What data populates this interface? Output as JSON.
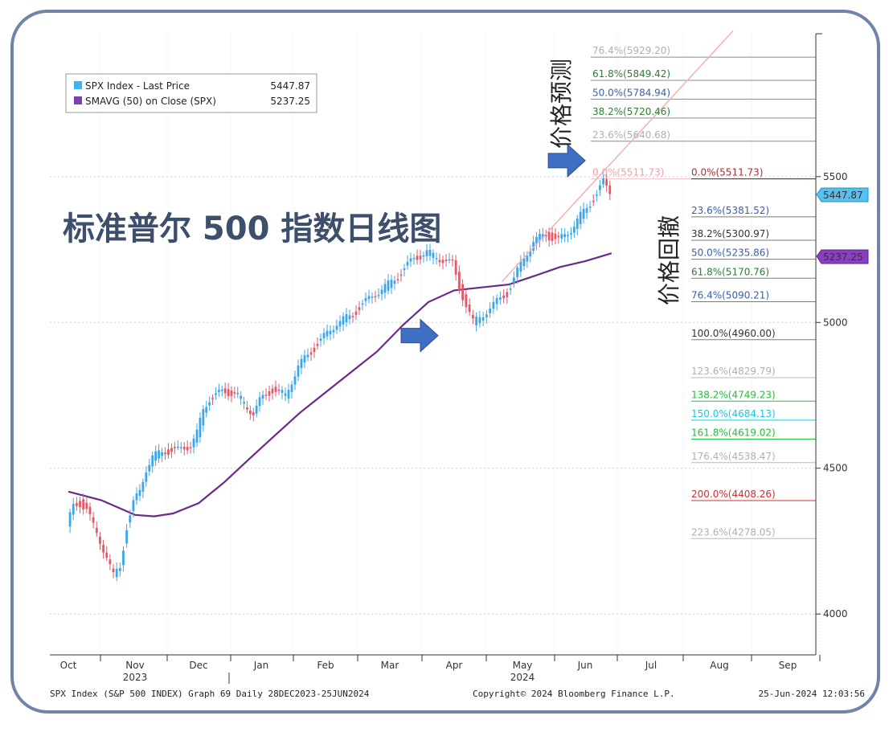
{
  "chart_data": {
    "type": "line",
    "title": "标准普尔 500 指数日线图",
    "annotation_forecast": "价格预测",
    "annotation_retracement": "价格回撤",
    "legend": [
      {
        "name": "SPX Index - Last Price",
        "value": "5447.87",
        "color": "#3db4f2"
      },
      {
        "name": "SMAVG (50)  on Close (SPX)",
        "value": "5237.25",
        "color": "#7e3fb0"
      }
    ],
    "last_price_badge": "5447.87",
    "sma_badge": "5237.25",
    "y_ticks": [
      {
        "value": 4000,
        "label": "4000"
      },
      {
        "value": 4500,
        "label": "4500"
      },
      {
        "value": 5000,
        "label": "5000"
      },
      {
        "value": 5500,
        "label": "5500"
      }
    ],
    "y_range": [
      3860,
      5990
    ],
    "x_months": [
      {
        "label": "Oct",
        "x": 0
      },
      {
        "label": "Nov",
        "x": 1
      },
      {
        "label": "Dec",
        "x": 2
      },
      {
        "label": "Jan",
        "x": 3
      },
      {
        "label": "Feb",
        "x": 4
      },
      {
        "label": "Mar",
        "x": 5
      },
      {
        "label": "Apr",
        "x": 6
      },
      {
        "label": "May",
        "x": 7
      },
      {
        "label": "Jun",
        "x": 8
      },
      {
        "label": "Jul",
        "x": 9
      },
      {
        "label": "Aug",
        "x": 10
      },
      {
        "label": "Sep",
        "x": 11
      }
    ],
    "x_years": [
      {
        "label": "2023",
        "x": 1
      },
      {
        "label": "2024",
        "x": 7
      }
    ],
    "price_series": [
      {
        "x": 0.0,
        "y": 4300
      },
      {
        "x": 0.1,
        "y": 4370
      },
      {
        "x": 0.2,
        "y": 4380
      },
      {
        "x": 0.3,
        "y": 4360
      },
      {
        "x": 0.4,
        "y": 4300
      },
      {
        "x": 0.5,
        "y": 4250
      },
      {
        "x": 0.6,
        "y": 4200
      },
      {
        "x": 0.7,
        "y": 4130
      },
      {
        "x": 0.8,
        "y": 4160
      },
      {
        "x": 0.9,
        "y": 4300
      },
      {
        "x": 1.0,
        "y": 4380
      },
      {
        "x": 1.1,
        "y": 4420
      },
      {
        "x": 1.2,
        "y": 4500
      },
      {
        "x": 1.3,
        "y": 4540
      },
      {
        "x": 1.5,
        "y": 4560
      },
      {
        "x": 1.7,
        "y": 4560
      },
      {
        "x": 1.9,
        "y": 4580
      },
      {
        "x": 2.0,
        "y": 4620
      },
      {
        "x": 2.1,
        "y": 4700
      },
      {
        "x": 2.2,
        "y": 4740
      },
      {
        "x": 2.4,
        "y": 4760
      },
      {
        "x": 2.6,
        "y": 4760
      },
      {
        "x": 2.8,
        "y": 4710
      },
      {
        "x": 2.9,
        "y": 4690
      },
      {
        "x": 3.0,
        "y": 4730
      },
      {
        "x": 3.2,
        "y": 4770
      },
      {
        "x": 3.4,
        "y": 4750
      },
      {
        "x": 3.6,
        "y": 4850
      },
      {
        "x": 3.8,
        "y": 4900
      },
      {
        "x": 4.0,
        "y": 4950
      },
      {
        "x": 4.2,
        "y": 5000
      },
      {
        "x": 4.4,
        "y": 5020
      },
      {
        "x": 4.6,
        "y": 5060
      },
      {
        "x": 4.8,
        "y": 5100
      },
      {
        "x": 5.0,
        "y": 5130
      },
      {
        "x": 5.2,
        "y": 5170
      },
      {
        "x": 5.4,
        "y": 5220
      },
      {
        "x": 5.6,
        "y": 5240
      },
      {
        "x": 5.8,
        "y": 5220
      },
      {
        "x": 6.0,
        "y": 5200
      },
      {
        "x": 6.1,
        "y": 5120
      },
      {
        "x": 6.2,
        "y": 5060
      },
      {
        "x": 6.3,
        "y": 5000
      },
      {
        "x": 6.4,
        "y": 5020
      },
      {
        "x": 6.6,
        "y": 5060
      },
      {
        "x": 6.8,
        "y": 5100
      },
      {
        "x": 7.0,
        "y": 5200
      },
      {
        "x": 7.2,
        "y": 5280
      },
      {
        "x": 7.4,
        "y": 5300
      },
      {
        "x": 7.6,
        "y": 5280
      },
      {
        "x": 7.8,
        "y": 5320
      },
      {
        "x": 8.0,
        "y": 5380
      },
      {
        "x": 8.2,
        "y": 5440
      },
      {
        "x": 8.3,
        "y": 5480
      },
      {
        "x": 8.4,
        "y": 5447.87
      }
    ],
    "sma_series": [
      {
        "x": 0.0,
        "y": 4420
      },
      {
        "x": 0.5,
        "y": 4390
      },
      {
        "x": 1.0,
        "y": 4340
      },
      {
        "x": 1.3,
        "y": 4335
      },
      {
        "x": 1.6,
        "y": 4345
      },
      {
        "x": 2.0,
        "y": 4380
      },
      {
        "x": 2.4,
        "y": 4450
      },
      {
        "x": 2.8,
        "y": 4530
      },
      {
        "x": 3.2,
        "y": 4610
      },
      {
        "x": 3.6,
        "y": 4690
      },
      {
        "x": 4.0,
        "y": 4760
      },
      {
        "x": 4.4,
        "y": 4830
      },
      {
        "x": 4.8,
        "y": 4900
      },
      {
        "x": 5.2,
        "y": 4990
      },
      {
        "x": 5.6,
        "y": 5070
      },
      {
        "x": 6.0,
        "y": 5110
      },
      {
        "x": 6.4,
        "y": 5120
      },
      {
        "x": 6.8,
        "y": 5130
      },
      {
        "x": 7.2,
        "y": 5160
      },
      {
        "x": 7.6,
        "y": 5190
      },
      {
        "x": 8.0,
        "y": 5210
      },
      {
        "x": 8.4,
        "y": 5237.25
      }
    ],
    "fib_forecast": [
      {
        "label": "76.4%(5929.20)",
        "value": 5929.2,
        "color": "#b0b0b0"
      },
      {
        "label": "61.8%(5849.42)",
        "value": 5849.42,
        "color": "#2e7d32"
      },
      {
        "label": "50.0%(5784.94)",
        "value": 5784.94,
        "color": "#3a5fa8"
      },
      {
        "label": "38.2%(5720.46)",
        "value": 5720.46,
        "color": "#2e7d32"
      },
      {
        "label": "23.6%(5640.68)",
        "value": 5640.68,
        "color": "#b0b0b0"
      },
      {
        "label": "0.0%(5511.73)",
        "value": 5511.73,
        "color": "#f0a0a8"
      }
    ],
    "fib_retracement": [
      {
        "label": "0.0%(5511.73)",
        "value": 5511.73,
        "color": "#b03030"
      },
      {
        "label": "23.6%(5381.52)",
        "value": 5381.52,
        "color": "#3a5fa8"
      },
      {
        "label": "38.2%(5300.97)",
        "value": 5300.97,
        "color": "#333333"
      },
      {
        "label": "50.0%(5235.86)",
        "value": 5235.86,
        "color": "#3a5fa8"
      },
      {
        "label": "61.8%(5170.76)",
        "value": 5170.76,
        "color": "#2e7d32"
      },
      {
        "label": "76.4%(5090.21)",
        "value": 5090.21,
        "color": "#3a5fa8"
      },
      {
        "label": "100.0%(4960.00)",
        "value": 4960.0,
        "color": "#333333"
      },
      {
        "label": "123.6%(4829.79)",
        "value": 4829.79,
        "color": "#b0b0b0"
      },
      {
        "label": "138.2%(4749.23)",
        "value": 4749.23,
        "color": "#22c03a"
      },
      {
        "label": "150.0%(4684.13)",
        "value": 4684.13,
        "color": "#1ec8e0"
      },
      {
        "label": "161.8%(4619.02)",
        "value": 4619.02,
        "color": "#22c03a"
      },
      {
        "label": "176.4%(4538.47)",
        "value": 4538.47,
        "color": "#b0b0b0"
      },
      {
        "label": "200.0%(4408.26)",
        "value": 4408.26,
        "color": "#d03030"
      },
      {
        "label": "223.6%(4278.05)",
        "value": 4278.05,
        "color": "#b0b0b0"
      }
    ],
    "trendline": {
      "from": {
        "x": 6.7,
        "y": 5140
      },
      "to": {
        "x": 10.2,
        "y": 6000
      },
      "color": "#f4b0b8"
    },
    "arrows": [
      {
        "x": 8.05,
        "y": 5555
      },
      {
        "x": 5.8,
        "y": 4955
      }
    ],
    "footer_left": "SPX Index (S&P 500 INDEX) Graph 69  Daily 28DEC2023-25JUN2024",
    "footer_center": "Copyright© 2024 Bloomberg Finance L.P.",
    "footer_right": "25-Jun-2024 12:03:56",
    "colors": {
      "up": "#3da6e8",
      "down": "#e05a6a",
      "sma": "#6a2a8c",
      "frame": "#6f84a8",
      "arrow": "#3f6fc4"
    }
  }
}
